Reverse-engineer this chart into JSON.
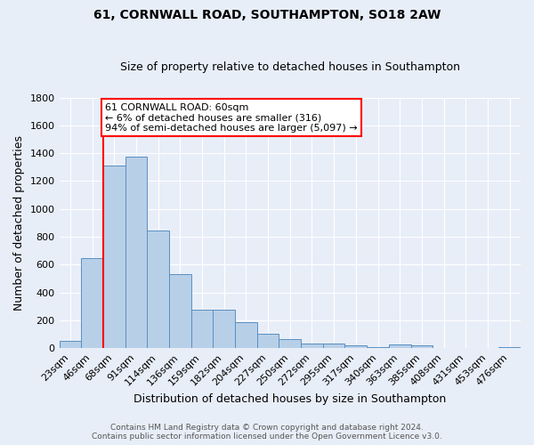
{
  "title": "61, CORNWALL ROAD, SOUTHAMPTON, SO18 2AW",
  "subtitle": "Size of property relative to detached houses in Southampton",
  "xlabel": "Distribution of detached houses by size in Southampton",
  "ylabel": "Number of detached properties",
  "footer_line1": "Contains HM Land Registry data © Crown copyright and database right 2024.",
  "footer_line2": "Contains public sector information licensed under the Open Government Licence v3.0.",
  "annotation_line1": "61 CORNWALL ROAD: 60sqm",
  "annotation_line2": "← 6% of detached houses are smaller (316)",
  "annotation_line3": "94% of semi-detached houses are larger (5,097) →",
  "bar_labels": [
    "23sqm",
    "46sqm",
    "68sqm",
    "91sqm",
    "114sqm",
    "136sqm",
    "159sqm",
    "182sqm",
    "204sqm",
    "227sqm",
    "250sqm",
    "272sqm",
    "295sqm",
    "317sqm",
    "340sqm",
    "363sqm",
    "385sqm",
    "408sqm",
    "431sqm",
    "453sqm",
    "476sqm"
  ],
  "bar_values": [
    55,
    645,
    1310,
    1375,
    845,
    530,
    275,
    275,
    185,
    105,
    65,
    35,
    35,
    20,
    10,
    25,
    20,
    0,
    0,
    0,
    10
  ],
  "bar_color": "#b8cfe8",
  "bar_edge_color": "#5a8fc0",
  "bg_color": "#e8eef8",
  "vline_color": "red",
  "vline_x": 1.5,
  "ylim": [
    0,
    1800
  ],
  "yticks": [
    0,
    200,
    400,
    600,
    800,
    1000,
    1200,
    1400,
    1600,
    1800
  ],
  "annotation_box_facecolor": "white",
  "annotation_box_edgecolor": "red",
  "title_fontsize": 10,
  "subtitle_fontsize": 9,
  "xlabel_fontsize": 9,
  "ylabel_fontsize": 9,
  "tick_fontsize": 8,
  "footer_fontsize": 6.5,
  "annot_fontsize": 8
}
